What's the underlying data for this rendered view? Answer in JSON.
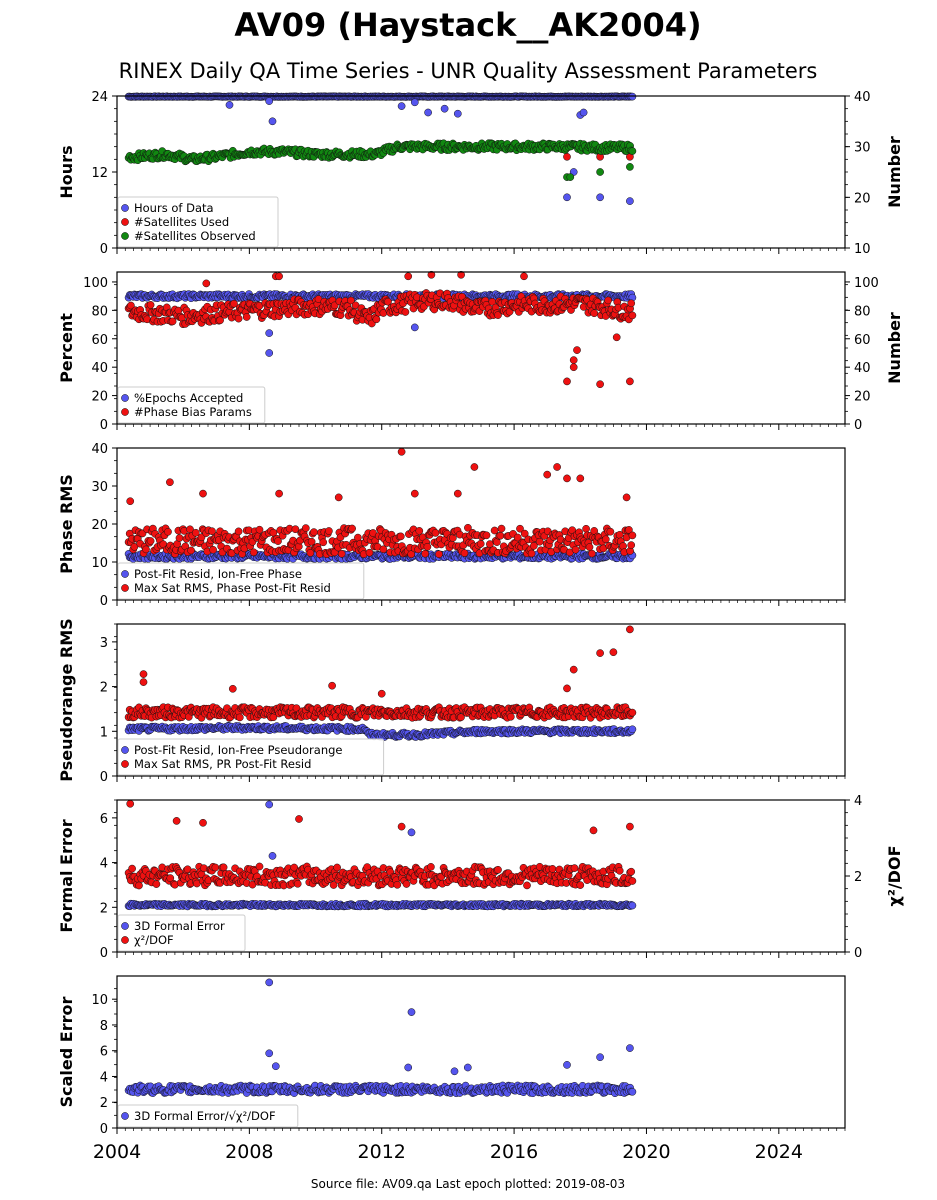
{
  "title": "AV09 (Haystack__AK2004)",
  "subtitle": "RINEX Daily QA Time Series - UNR Quality Assessment Parameters",
  "footer": "Source file: AV09.qa Last epoch plotted: 2019-08-03",
  "xaxis": {
    "range": [
      2004.0,
      2026.0
    ],
    "ticks": [
      2004,
      2008,
      2012,
      2016,
      2020,
      2024
    ],
    "tick_labels": [
      "2004",
      "2008",
      "2012",
      "2016",
      "2020",
      "2024"
    ]
  },
  "colors": {
    "blue": "#5555ee",
    "red": "#ee1111",
    "green": "#118811",
    "edge": "#111111"
  },
  "chart_data": [
    {
      "type": "scatter",
      "ylabel": "Hours",
      "ylim": [
        0,
        24
      ],
      "yticks": [
        "0",
        "12",
        "24"
      ],
      "y2label": "Number",
      "y2lim": [
        10,
        40
      ],
      "y2ticks": [
        "10",
        "20",
        "30",
        "40"
      ],
      "legend": [
        "Hours of Data",
        "#Satellites Used",
        "#Satellites Observed"
      ],
      "legend_position": "lower-left",
      "series": [
        {
          "name": "Hours of Data",
          "color": "blue",
          "axis": "left",
          "base": 23.9,
          "noise": 0.05,
          "x": [
            2008.6,
            2008.7,
            2007.4,
            2012.6,
            2013.0,
            2013.4,
            2013.9,
            2014.3,
            2017.6,
            2017.8,
            2018.0,
            2018.1,
            2018.6,
            2019.5
          ],
          "y": [
            23.2,
            20.0,
            22.6,
            22.4,
            23.0,
            21.4,
            22.0,
            21.2,
            8.0,
            12.0,
            21.0,
            21.4,
            8.0,
            7.4
          ]
        },
        {
          "name": "#Satellites Used",
          "color": "red",
          "axis": "right",
          "x": [
            2017.6,
            2018.6,
            2019.5
          ],
          "y": [
            28.0,
            28.0,
            28.0
          ]
        },
        {
          "name": "#Satellites Observed",
          "color": "green",
          "axis": "right",
          "x": [
            2004.6,
            2005.5,
            2006.3,
            2007.0,
            2008.0,
            2009.0,
            2010.0,
            2011.0,
            2011.8,
            2012.5,
            2013.5,
            2014.5,
            2015.5,
            2016.5,
            2017.5,
            2018.5,
            2019.5
          ],
          "y": [
            28.0,
            28.5,
            27.5,
            28.0,
            29.0,
            29.0,
            28.5,
            28.5,
            28.5,
            30.0,
            30.0,
            30.0,
            30.0,
            30.0,
            30.0,
            29.8,
            29.8
          ],
          "noise": 0.7,
          "outliers_x": [
            2017.6,
            2017.7,
            2018.6,
            2019.5
          ],
          "outliers_y": [
            24.0,
            24.0,
            25.0,
            26.0
          ]
        }
      ]
    },
    {
      "type": "scatter",
      "ylabel": "Percent",
      "ylim": [
        0,
        107
      ],
      "yticks": [
        "0",
        "20",
        "40",
        "60",
        "80",
        "100"
      ],
      "y2label": "Number",
      "y2lim": [
        0,
        107
      ],
      "y2ticks": [
        "0",
        "20",
        "40",
        "60",
        "80",
        "100"
      ],
      "legend": [
        "%Epochs Accepted",
        "#Phase Bias Params"
      ],
      "legend_position": "lower-left",
      "series": [
        {
          "name": "%Epochs Accepted",
          "color": "blue",
          "axis": "left",
          "base": 90,
          "noise": 1.5,
          "x": [
            2008.6,
            2008.6,
            2013.0
          ],
          "y": [
            64,
            50,
            68
          ]
        },
        {
          "name": "#Phase Bias Params",
          "color": "red",
          "axis": "right",
          "x": [
            2004.5,
            2006.0,
            2008.0,
            2010.0,
            2011.0,
            2011.6,
            2012.0,
            2013.0,
            2014.0,
            2015.0,
            2016.0,
            2017.0,
            2018.0,
            2019.5
          ],
          "y": [
            79,
            76,
            80,
            83,
            82,
            73,
            82,
            86,
            87,
            81,
            84,
            84,
            85,
            79
          ],
          "noise": 6,
          "outliers_x": [
            2008.8,
            2008.9,
            2012.8,
            2013.5,
            2014.4,
            2016.3,
            2017.6,
            2017.8,
            2017.8,
            2017.9,
            2018.6,
            2019.1,
            2019.5,
            2006.7
          ],
          "outliers_y": [
            104,
            104,
            104,
            105,
            105,
            104,
            30,
            40,
            45,
            52,
            28,
            61,
            30,
            99
          ]
        }
      ]
    },
    {
      "type": "scatter",
      "ylabel": "Phase RMS",
      "ylim": [
        0,
        40
      ],
      "yticks": [
        "0",
        "10",
        "20",
        "30",
        "40"
      ],
      "legend": [
        "Post-Fit Resid, Ion-Free Phase",
        "Max Sat RMS, Phase Post-Fit Resid"
      ],
      "legend_position": "lower-left",
      "series": [
        {
          "name": "Post-Fit Resid, Ion-Free Phase",
          "color": "blue",
          "axis": "left",
          "base": 11.5,
          "noise": 0.7
        },
        {
          "name": "Max Sat RMS, Phase Post-Fit Resid",
          "color": "red",
          "axis": "left",
          "base": 15.5,
          "noise": 3.5,
          "x": [
            2004.4,
            2005.6,
            2006.6,
            2008.9,
            2010.7,
            2012.6,
            2013.0,
            2014.3,
            2014.8,
            2017.0,
            2017.3,
            2017.6,
            2018.0,
            2019.4
          ],
          "y": [
            26,
            31,
            28,
            28,
            27,
            39,
            28,
            28,
            35,
            33,
            35,
            32,
            32,
            27
          ]
        }
      ]
    },
    {
      "type": "scatter",
      "ylabel": "Pseudorange RMS",
      "ylim": [
        0,
        3.4
      ],
      "yticks": [
        "0",
        "1",
        "2",
        "3"
      ],
      "legend": [
        "Post-Fit Resid, Ion-Free Pseudorange",
        "Max Sat RMS, PR Post-Fit Resid"
      ],
      "legend_position": "lower-left",
      "series": [
        {
          "name": "Post-Fit Resid, Ion-Free Pseudorange",
          "color": "blue",
          "axis": "left",
          "noise": 0.05,
          "x": [
            2004.4,
            2008.0,
            2011.5,
            2011.6,
            2013.0,
            2015.0,
            2019.5
          ],
          "y": [
            1.05,
            1.08,
            1.05,
            0.92,
            0.92,
            1.0,
            1.0
          ]
        },
        {
          "name": "Max Sat RMS, PR Post-Fit Resid",
          "color": "red",
          "axis": "left",
          "base": 1.42,
          "noise": 0.12,
          "x": [
            2004.8,
            2004.8,
            2007.5,
            2010.5,
            2012.0,
            2017.6,
            2017.8,
            2018.6,
            2019.0,
            2019.5
          ],
          "y": [
            2.28,
            2.1,
            1.95,
            2.02,
            1.84,
            1.96,
            2.38,
            2.75,
            2.77,
            3.28
          ]
        }
      ]
    },
    {
      "type": "scatter",
      "ylabel": "Formal Error",
      "ylim": [
        0,
        6.8
      ],
      "yticks": [
        "0",
        "2",
        "4",
        "6"
      ],
      "y2label": "χ²/DOF",
      "y2lim": [
        0,
        4.0
      ],
      "y2ticks": [
        "0",
        "2",
        "4"
      ],
      "legend": [
        "3D Formal Error",
        "χ²/DOF"
      ],
      "legend_position": "lower-left",
      "series": [
        {
          "name": "3D Formal Error",
          "color": "blue",
          "axis": "left",
          "base": 2.1,
          "noise": 0.06,
          "x": [
            2008.6,
            2008.7,
            2012.9
          ],
          "y": [
            6.6,
            4.3,
            5.35
          ]
        },
        {
          "name": "χ²/DOF",
          "color": "red",
          "axis": "right",
          "base": 2.0,
          "noise": 0.25,
          "x": [
            2004.4,
            2005.8,
            2006.6,
            2009.5,
            2012.6,
            2018.4,
            2019.5
          ],
          "y": [
            3.9,
            3.45,
            3.4,
            3.5,
            3.3,
            3.2,
            3.3
          ]
        }
      ]
    },
    {
      "type": "scatter",
      "ylabel": "Scaled Error",
      "ylim": [
        0,
        11.8
      ],
      "yticks": [
        "0",
        "2",
        "4",
        "6",
        "8",
        "10"
      ],
      "legend": [
        "3D Formal Error/√χ²/DOF"
      ],
      "legend_position": "lower-left",
      "series": [
        {
          "name": "3D Formal Error/√χ²/DOF",
          "color": "blue",
          "axis": "left",
          "base": 3.0,
          "noise": 0.3,
          "x": [
            2008.6,
            2008.6,
            2008.8,
            2012.9,
            2012.8,
            2014.2,
            2014.6,
            2017.6,
            2018.6,
            2019.5
          ],
          "y": [
            11.3,
            5.8,
            4.8,
            9.0,
            4.7,
            4.4,
            4.7,
            4.9,
            5.5,
            6.2
          ]
        }
      ]
    }
  ]
}
